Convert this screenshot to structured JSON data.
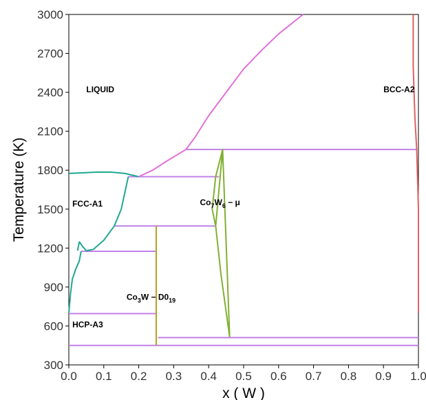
{
  "chart_data": {
    "type": "line",
    "title": "",
    "xlabel": "x ( W )",
    "ylabel": "Temperature (K)",
    "xlim": [
      0.0,
      1.0
    ],
    "ylim": [
      300,
      3000
    ],
    "x_ticks": [
      "0.0",
      "0.1",
      "0.2",
      "0.3",
      "0.4",
      "0.5",
      "0.6",
      "0.7",
      "0.8",
      "0.9",
      "1.0"
    ],
    "y_ticks": [
      "300",
      "600",
      "900",
      "1200",
      "1500",
      "1800",
      "2100",
      "2400",
      "2700",
      "3000"
    ],
    "grid": false,
    "legend": "none",
    "colors": {
      "liquidus_bcc": "#e070d8",
      "tie_lines": "#c080e8",
      "fcc_boundary": "#20a890",
      "mu_phase": "#80b030",
      "d019_phase": "#b8a020",
      "bcc_solvus": "#e06060"
    },
    "phase_labels": [
      {
        "text": "LIQUID",
        "x": 0.05,
        "y": 2400
      },
      {
        "text": "BCC-A2",
        "x": 0.9,
        "y": 2400
      },
      {
        "text": "FCC-A1",
        "x": 0.01,
        "y": 1520
      },
      {
        "text": "HCP-A3",
        "x": 0.01,
        "y": 590
      },
      {
        "text": "Co",
        "sub1": "7",
        "mid": "W",
        "sub2": "6",
        "tail": " − μ",
        "x": 0.375,
        "y": 1530
      },
      {
        "text": "Co",
        "sub1": "3",
        "mid": "W − D0",
        "sub2": "19",
        "tail": "",
        "x": 0.165,
        "y": 800
      }
    ],
    "series": [
      {
        "color": "#e070d8",
        "points": [
          [
            0.2,
            1750
          ],
          [
            0.24,
            1800
          ],
          [
            0.28,
            1870
          ],
          [
            0.335,
            1960
          ],
          [
            0.36,
            2050
          ],
          [
            0.4,
            2220
          ],
          [
            0.45,
            2400
          ],
          [
            0.5,
            2580
          ],
          [
            0.55,
            2720
          ],
          [
            0.6,
            2850
          ],
          [
            0.67,
            3000
          ]
        ]
      },
      {
        "color": "#c080e8",
        "points": [
          [
            0.0,
            450
          ],
          [
            1.0,
            450
          ]
        ]
      },
      {
        "color": "#c080e8",
        "points": [
          [
            0.255,
            510
          ],
          [
            1.0,
            510
          ]
        ]
      },
      {
        "color": "#c080e8",
        "points": [
          [
            0.0,
            695
          ],
          [
            0.25,
            695
          ]
        ]
      },
      {
        "color": "#c080e8",
        "points": [
          [
            0.035,
            1175
          ],
          [
            0.25,
            1175
          ]
        ]
      },
      {
        "color": "#c080e8",
        "points": [
          [
            0.13,
            1370
          ],
          [
            0.42,
            1370
          ]
        ]
      },
      {
        "color": "#c080e8",
        "points": [
          [
            0.17,
            1750
          ],
          [
            0.43,
            1750
          ]
        ]
      },
      {
        "color": "#c080e8",
        "points": [
          [
            0.335,
            1960
          ],
          [
            0.995,
            1960
          ]
        ]
      },
      {
        "color": "#20a890",
        "points": [
          [
            0.0,
            1775
          ],
          [
            0.04,
            1780
          ],
          [
            0.08,
            1785
          ],
          [
            0.12,
            1785
          ],
          [
            0.16,
            1775
          ],
          [
            0.2,
            1750
          ]
        ]
      },
      {
        "color": "#20a890",
        "points": [
          [
            0.0,
            700
          ],
          [
            0.005,
            850
          ],
          [
            0.01,
            960
          ],
          [
            0.02,
            1040
          ],
          [
            0.03,
            1100
          ],
          [
            0.035,
            1175
          ]
        ]
      },
      {
        "color": "#20a890",
        "points": [
          [
            0.03,
            1250
          ],
          [
            0.04,
            1210
          ],
          [
            0.05,
            1180
          ],
          [
            0.07,
            1190
          ],
          [
            0.1,
            1260
          ],
          [
            0.13,
            1370
          ],
          [
            0.15,
            1500
          ],
          [
            0.17,
            1750
          ]
        ]
      },
      {
        "color": "#20a890",
        "points": [
          [
            0.025,
            1180
          ],
          [
            0.03,
            1250
          ]
        ]
      },
      {
        "color": "#80b030",
        "points": [
          [
            0.42,
            1370
          ],
          [
            0.44,
            1960
          ],
          [
            0.46,
            515
          ]
        ]
      },
      {
        "color": "#80b030",
        "points": [
          [
            0.42,
            1370
          ],
          [
            0.41,
            1500
          ],
          [
            0.42,
            1750
          ],
          [
            0.44,
            1960
          ]
        ]
      },
      {
        "color": "#80b030",
        "points": [
          [
            0.42,
            1370
          ],
          [
            0.435,
            1000
          ],
          [
            0.46,
            515
          ]
        ]
      },
      {
        "color": "#b8a020",
        "points": [
          [
            0.25,
            450
          ],
          [
            0.25,
            1370
          ]
        ]
      },
      {
        "color": "#e06060",
        "points": [
          [
            0.985,
            3000
          ],
          [
            0.985,
            2600
          ],
          [
            0.99,
            2200
          ],
          [
            0.995,
            1960
          ],
          [
            1.0,
            1500
          ],
          [
            1.0,
            1000
          ],
          [
            1.0,
            700
          ]
        ]
      }
    ]
  }
}
